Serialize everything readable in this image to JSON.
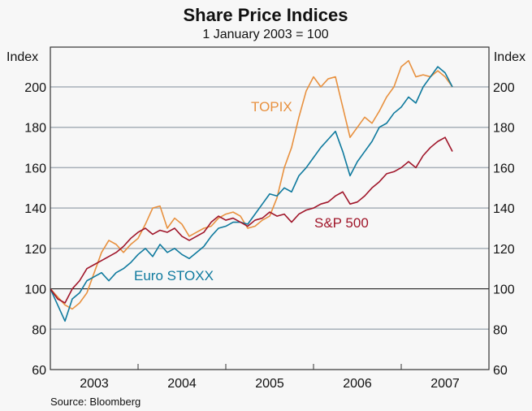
{
  "chart_data": {
    "type": "line",
    "title": "Share Price Indices",
    "subtitle": "1 January 2003 = 100",
    "ylabel_left": "Index",
    "ylabel_right": "Index",
    "source": "Source: Bloomberg",
    "ylim": [
      60,
      220
    ],
    "yticks": [
      60,
      80,
      100,
      120,
      140,
      160,
      180,
      200
    ],
    "xlim": [
      2003.0,
      2008.0
    ],
    "xtick_labels": [
      "2003",
      "2004",
      "2005",
      "2006",
      "2007"
    ],
    "x_start": 2003.0,
    "x_step_months": 1,
    "series": [
      {
        "name": "TOPIX",
        "color": "#e8913f",
        "values": [
          100,
          96,
          92,
          90,
          93,
          98,
          108,
          118,
          124,
          122,
          118,
          122,
          125,
          132,
          140,
          141,
          130,
          135,
          132,
          126,
          128,
          130,
          131,
          135,
          137,
          138,
          136,
          130,
          131,
          134,
          136,
          145,
          160,
          170,
          185,
          198,
          205,
          200,
          204,
          205,
          190,
          175,
          180,
          185,
          182,
          188,
          195,
          200,
          210,
          213,
          205,
          206,
          205,
          208,
          205,
          200
        ]
      },
      {
        "name": "Euro STOXX",
        "color": "#0f7a9e",
        "values": [
          100,
          92,
          84,
          95,
          98,
          104,
          106,
          108,
          104,
          108,
          110,
          113,
          117,
          120,
          116,
          122,
          118,
          120,
          117,
          115,
          118,
          121,
          126,
          130,
          131,
          133,
          133,
          132,
          137,
          142,
          147,
          146,
          150,
          148,
          156,
          160,
          165,
          170,
          174,
          178,
          168,
          156,
          163,
          168,
          173,
          180,
          182,
          187,
          190,
          195,
          192,
          200,
          205,
          210,
          207,
          200
        ]
      },
      {
        "name": "S&P 500",
        "color": "#a0162a",
        "values": [
          100,
          95,
          93,
          100,
          104,
          110,
          112,
          114,
          116,
          118,
          121,
          125,
          128,
          130,
          127,
          129,
          128,
          130,
          126,
          124,
          126,
          128,
          133,
          136,
          134,
          135,
          133,
          131,
          134,
          135,
          138,
          136,
          137,
          133,
          137,
          139,
          140,
          142,
          143,
          146,
          148,
          142,
          143,
          146,
          150,
          153,
          157,
          158,
          160,
          163,
          160,
          166,
          170,
          173,
          175,
          168
        ]
      }
    ],
    "reference_line": 100
  }
}
